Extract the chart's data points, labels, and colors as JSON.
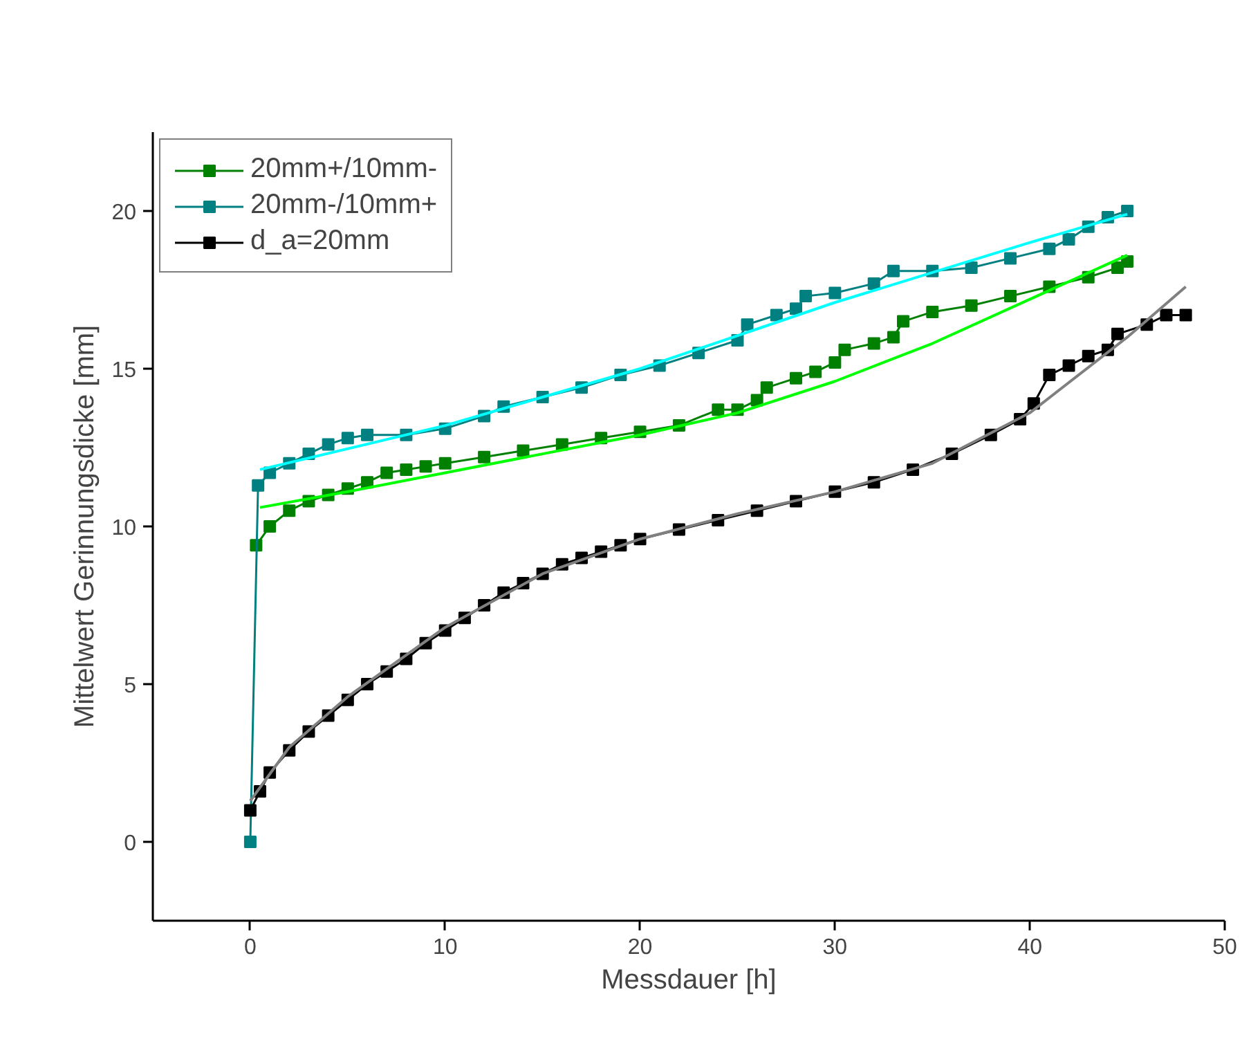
{
  "chart_data": {
    "type": "line",
    "xlabel": "Messdauer [h]",
    "ylabel": "Mittelwert Gerinnungsdicke [mm]",
    "xlim": [
      -5,
      50
    ],
    "xticks": [
      0,
      10,
      20,
      30,
      40,
      50
    ],
    "ylim": [
      -2.5,
      22.5
    ],
    "yticks": [
      0,
      5,
      10,
      15,
      20
    ],
    "grid": false,
    "legend": "top left",
    "marker": "square",
    "series": [
      {
        "type": "line",
        "color": "#00ff00",
        "marker": "none",
        "x": [
          0.5,
          5,
          10,
          15,
          20,
          25,
          30,
          35,
          40,
          45
        ],
        "values": [
          10.6,
          11.1,
          11.7,
          12.3,
          12.9,
          13.6,
          14.6,
          15.8,
          17.2,
          18.6
        ]
      },
      {
        "type": "line",
        "color": "#00ffff",
        "marker": "none",
        "x": [
          0.5,
          10,
          20,
          30,
          40,
          45
        ],
        "values": [
          11.8,
          13.2,
          15.0,
          17.1,
          19.0,
          19.9
        ]
      },
      {
        "type": "line",
        "color": "#808080",
        "marker": "none",
        "x": [
          0,
          2,
          5,
          10,
          15,
          20,
          25,
          30,
          35,
          40,
          45,
          48
        ],
        "values": [
          1.3,
          3.0,
          4.6,
          6.8,
          8.5,
          9.6,
          10.4,
          11.1,
          12.0,
          13.6,
          16.0,
          17.6
        ]
      },
      {
        "name": "20mm+/10mm-",
        "color": "#008000",
        "x": [
          0.3,
          1,
          2,
          3,
          4,
          5,
          6,
          7,
          8,
          9,
          10,
          12,
          14,
          16,
          18,
          20,
          22,
          24,
          25,
          26,
          26.5,
          28,
          29,
          30,
          30.5,
          32,
          33,
          33.5,
          35,
          37,
          39,
          41,
          43,
          44.5,
          45
        ],
        "values": [
          9.4,
          10.0,
          10.5,
          10.8,
          11.0,
          11.2,
          11.4,
          11.7,
          11.8,
          11.9,
          12.0,
          12.2,
          12.4,
          12.6,
          12.8,
          13.0,
          13.2,
          13.7,
          13.7,
          14.0,
          14.4,
          14.7,
          14.9,
          15.2,
          15.6,
          15.8,
          16.0,
          16.5,
          16.8,
          17.0,
          17.3,
          17.6,
          17.9,
          18.2,
          18.4
        ]
      },
      {
        "name": "20mm-/10mm+",
        "color": "#008080",
        "x": [
          0,
          0.4,
          1,
          2,
          3,
          4,
          5,
          6,
          8,
          10,
          12,
          13,
          15,
          17,
          19,
          21,
          23,
          25,
          25.5,
          27,
          28,
          28.5,
          30,
          32,
          33,
          35,
          37,
          39,
          41,
          42,
          43,
          44,
          45
        ],
        "values": [
          0,
          11.3,
          11.7,
          12.0,
          12.3,
          12.6,
          12.8,
          12.9,
          12.9,
          13.1,
          13.5,
          13.8,
          14.1,
          14.4,
          14.8,
          15.1,
          15.5,
          15.9,
          16.4,
          16.7,
          16.9,
          17.3,
          17.4,
          17.7,
          18.1,
          18.1,
          18.2,
          18.5,
          18.8,
          19.1,
          19.5,
          19.8,
          20.0
        ]
      },
      {
        "name": "d_a=20mm",
        "color": "#000000",
        "x": [
          0,
          0.5,
          1,
          2,
          3,
          4,
          5,
          6,
          7,
          8,
          9,
          10,
          11,
          12,
          13,
          14,
          15,
          16,
          17,
          18,
          19,
          20,
          22,
          24,
          26,
          28,
          30,
          32,
          34,
          36,
          38,
          39.5,
          40.2,
          41,
          42,
          43,
          44,
          44.5,
          46,
          47,
          48
        ],
        "values": [
          1.0,
          1.6,
          2.2,
          2.9,
          3.5,
          4.0,
          4.5,
          5.0,
          5.4,
          5.8,
          6.3,
          6.7,
          7.1,
          7.5,
          7.9,
          8.2,
          8.5,
          8.8,
          9.0,
          9.2,
          9.4,
          9.6,
          9.9,
          10.2,
          10.5,
          10.8,
          11.1,
          11.4,
          11.8,
          12.3,
          12.9,
          13.4,
          13.9,
          14.8,
          15.1,
          15.4,
          15.6,
          16.1,
          16.4,
          16.7,
          16.7
        ]
      }
    ]
  }
}
